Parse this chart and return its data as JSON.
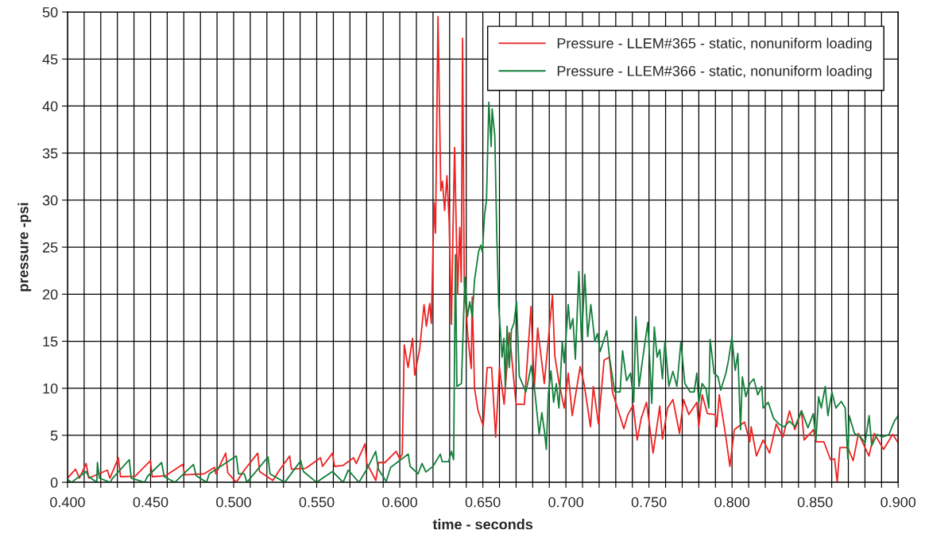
{
  "chart_data": {
    "type": "line",
    "xlabel": "time - seconds",
    "ylabel": "pressure -psi",
    "xlim": [
      0.4,
      0.9
    ],
    "ylim": [
      0,
      50
    ],
    "xticks": [
      {
        "value": 0.4,
        "label": "0.400"
      },
      {
        "value": 0.41,
        "label": null
      },
      {
        "value": 0.42,
        "label": null
      },
      {
        "value": 0.43,
        "label": null
      },
      {
        "value": 0.44,
        "label": null
      },
      {
        "value": 0.45,
        "label": "0.450"
      },
      {
        "value": 0.46,
        "label": null
      },
      {
        "value": 0.47,
        "label": null
      },
      {
        "value": 0.48,
        "label": null
      },
      {
        "value": 0.49,
        "label": null
      },
      {
        "value": 0.5,
        "label": "0.500"
      },
      {
        "value": 0.51,
        "label": null
      },
      {
        "value": 0.52,
        "label": null
      },
      {
        "value": 0.53,
        "label": null
      },
      {
        "value": 0.54,
        "label": null
      },
      {
        "value": 0.55,
        "label": "0.550"
      },
      {
        "value": 0.56,
        "label": null
      },
      {
        "value": 0.57,
        "label": null
      },
      {
        "value": 0.58,
        "label": null
      },
      {
        "value": 0.59,
        "label": null
      },
      {
        "value": 0.6,
        "label": "0.600"
      },
      {
        "value": 0.61,
        "label": null
      },
      {
        "value": 0.62,
        "label": null
      },
      {
        "value": 0.63,
        "label": null
      },
      {
        "value": 0.64,
        "label": null
      },
      {
        "value": 0.65,
        "label": "0.650"
      },
      {
        "value": 0.66,
        "label": null
      },
      {
        "value": 0.67,
        "label": null
      },
      {
        "value": 0.68,
        "label": null
      },
      {
        "value": 0.69,
        "label": null
      },
      {
        "value": 0.7,
        "label": "0.700"
      },
      {
        "value": 0.71,
        "label": null
      },
      {
        "value": 0.72,
        "label": null
      },
      {
        "value": 0.73,
        "label": null
      },
      {
        "value": 0.74,
        "label": null
      },
      {
        "value": 0.75,
        "label": "0.750"
      },
      {
        "value": 0.76,
        "label": null
      },
      {
        "value": 0.77,
        "label": null
      },
      {
        "value": 0.78,
        "label": null
      },
      {
        "value": 0.79,
        "label": null
      },
      {
        "value": 0.8,
        "label": "0.800"
      },
      {
        "value": 0.81,
        "label": null
      },
      {
        "value": 0.82,
        "label": null
      },
      {
        "value": 0.83,
        "label": null
      },
      {
        "value": 0.84,
        "label": null
      },
      {
        "value": 0.85,
        "label": "0.850"
      },
      {
        "value": 0.86,
        "label": null
      },
      {
        "value": 0.87,
        "label": null
      },
      {
        "value": 0.88,
        "label": null
      },
      {
        "value": 0.89,
        "label": null
      },
      {
        "value": 0.9,
        "label": "0.900"
      }
    ],
    "yticks": [
      0,
      5,
      10,
      15,
      20,
      25,
      30,
      35,
      40,
      45,
      50
    ],
    "grid": true,
    "legend": "top right",
    "marker": "none",
    "line_style": "solid",
    "series": [
      {
        "name": "Pressure - LLEM#365 - static, nonuniform loading",
        "color": "#ee2222",
        "x": [
          0.4,
          0.4048,
          0.4072,
          0.4112,
          0.4128,
          0.424,
          0.4255,
          0.4306,
          0.4319,
          0.4407,
          0.4499,
          0.451,
          0.459,
          0.4694,
          0.4706,
          0.4821,
          0.4885,
          0.4893,
          0.4952,
          0.4965,
          0.5016,
          0.5064,
          0.5145,
          0.5156,
          0.5236,
          0.5276,
          0.5337,
          0.5348,
          0.5435,
          0.5523,
          0.5535,
          0.5595,
          0.5607,
          0.5659,
          0.5722,
          0.5738,
          0.5791,
          0.5802,
          0.5856,
          0.5872,
          0.5911,
          0.5978,
          0.6,
          0.6015,
          0.6027,
          0.605,
          0.6077,
          0.609,
          0.612,
          0.6146,
          0.616,
          0.618,
          0.619,
          0.6206,
          0.6215,
          0.623,
          0.6247,
          0.6257,
          0.627,
          0.6284,
          0.6297,
          0.6311,
          0.632,
          0.633,
          0.6348,
          0.6361,
          0.637,
          0.6378,
          0.6388,
          0.641,
          0.643,
          0.6436,
          0.645,
          0.647,
          0.6502,
          0.6526,
          0.6553,
          0.6577,
          0.66,
          0.6628,
          0.666,
          0.67,
          0.675,
          0.679,
          0.681,
          0.683,
          0.687,
          0.6919,
          0.6933,
          0.6957,
          0.699,
          0.7014,
          0.7038,
          0.7086,
          0.711,
          0.7148,
          0.7165,
          0.7196,
          0.723,
          0.7262,
          0.728,
          0.731,
          0.7349,
          0.7373,
          0.7405,
          0.7429,
          0.7453,
          0.7485,
          0.7525,
          0.7565,
          0.7581,
          0.7612,
          0.7644,
          0.7684,
          0.7708,
          0.774,
          0.7788,
          0.78,
          0.782,
          0.7852,
          0.79,
          0.7908,
          0.7923,
          0.7963,
          0.7987,
          0.8014,
          0.8075,
          0.8107,
          0.8115,
          0.8147,
          0.8187,
          0.8226,
          0.8266,
          0.8306,
          0.8346,
          0.8378,
          0.8418,
          0.8434,
          0.849,
          0.8506,
          0.8553,
          0.8593,
          0.8617,
          0.8633,
          0.8649,
          0.8697,
          0.8729,
          0.8761,
          0.8824,
          0.8856,
          0.8912,
          0.8967,
          0.9
        ],
        "values": [
          0.45,
          1.4,
          0.45,
          2.0,
          0.45,
          1.3,
          0.45,
          2.6,
          0.6,
          0.65,
          2.3,
          0.6,
          0.7,
          1.9,
          0.8,
          0.9,
          1.6,
          0.9,
          3.1,
          1.0,
          0.0,
          1.3,
          3.1,
          1.15,
          0.2,
          1.3,
          2.8,
          1.4,
          1.5,
          2.6,
          1.7,
          3.1,
          1.7,
          1.8,
          2.6,
          2.0,
          4.1,
          2.0,
          0.2,
          2.1,
          2.1,
          3.3,
          2.5,
          3.0,
          14.6,
          12.2,
          15.3,
          11.4,
          14.2,
          18.9,
          16.6,
          19.0,
          16.9,
          29.7,
          26.5,
          49.5,
          31.0,
          32.0,
          28.9,
          32.6,
          27.8,
          16.8,
          26.5,
          35.6,
          20.0,
          27.1,
          21.3,
          47.2,
          21.3,
          15.5,
          12.1,
          19.7,
          10.0,
          7.7,
          6.0,
          12.2,
          12.2,
          4.8,
          12.2,
          8.3,
          15.9,
          8.3,
          8.3,
          18.7,
          10.0,
          16.4,
          10.5,
          19.9,
          13.5,
          10.7,
          7.9,
          11.6,
          7.1,
          12.3,
          10.4,
          5.9,
          10.2,
          6.2,
          13.0,
          13.3,
          9.6,
          7.9,
          5.7,
          7.2,
          8.2,
          4.5,
          6.8,
          8.5,
          3.1,
          8.1,
          4.6,
          7.9,
          8.8,
          5.2,
          8.8,
          7.2,
          8.5,
          5.9,
          9.3,
          7.3,
          7.2,
          5.9,
          9.3,
          4.8,
          1.7,
          5.6,
          6.4,
          4.3,
          5.9,
          2.8,
          4.5,
          3.1,
          6.2,
          4.8,
          7.6,
          5.6,
          7.6,
          4.5,
          5.6,
          4.3,
          4.3,
          2.4,
          2.5,
          0.0,
          3.7,
          3.7,
          2.3,
          5.2,
          2.8,
          5.2,
          3.5,
          5.1,
          4.2
        ]
      },
      {
        "name": "Pressure - LLEM#366 - static, nonuniform loading",
        "color": "#137f3a",
        "x": [
          0.4,
          0.4024,
          0.4112,
          0.4128,
          0.4176,
          0.418,
          0.4192,
          0.4256,
          0.4272,
          0.4372,
          0.4383,
          0.4464,
          0.448,
          0.4566,
          0.4582,
          0.4646,
          0.4758,
          0.4774,
          0.4837,
          0.4853,
          0.5016,
          0.5029,
          0.5064,
          0.508,
          0.5207,
          0.5219,
          0.5308,
          0.5404,
          0.542,
          0.5499,
          0.5595,
          0.5659,
          0.569,
          0.5754,
          0.5802,
          0.5855,
          0.5871,
          0.5918,
          0.5945,
          0.6051,
          0.6062,
          0.611,
          0.6134,
          0.6157,
          0.62,
          0.6244,
          0.6255,
          0.6294,
          0.6311,
          0.6324,
          0.6335,
          0.6344,
          0.6371,
          0.6392,
          0.6407,
          0.6421,
          0.6436,
          0.645,
          0.6474,
          0.6487,
          0.6497,
          0.651,
          0.6522,
          0.6536,
          0.655,
          0.6556,
          0.6572,
          0.6584,
          0.6596,
          0.6616,
          0.6627,
          0.6635,
          0.6646,
          0.6659,
          0.6672,
          0.6687,
          0.6703,
          0.6719,
          0.6759,
          0.6791,
          0.6815,
          0.6839,
          0.6855,
          0.6871,
          0.6882,
          0.6894,
          0.691,
          0.6926,
          0.6942,
          0.6958,
          0.6978,
          0.699,
          0.7014,
          0.7026,
          0.7042,
          0.7057,
          0.7078,
          0.7094,
          0.7114,
          0.7131,
          0.715,
          0.7174,
          0.719,
          0.7206,
          0.7246,
          0.7262,
          0.7294,
          0.7326,
          0.7341,
          0.7365,
          0.7389,
          0.7408,
          0.7421,
          0.744,
          0.7461,
          0.7493,
          0.7517,
          0.7532,
          0.7549,
          0.7565,
          0.7581,
          0.7596,
          0.762,
          0.7644,
          0.7668,
          0.7692,
          0.7716,
          0.7748,
          0.7772,
          0.7788,
          0.78,
          0.782,
          0.7844,
          0.786,
          0.7868,
          0.7892,
          0.7916,
          0.7932,
          0.7963,
          0.7979,
          0.7999,
          0.8019,
          0.8035,
          0.8051,
          0.8062,
          0.8083,
          0.8107,
          0.8131,
          0.8155,
          0.8179,
          0.8187,
          0.8218,
          0.825,
          0.8282,
          0.8314,
          0.8346,
          0.8378,
          0.8418,
          0.8457,
          0.8489,
          0.8505,
          0.8521,
          0.8537,
          0.8561,
          0.8577,
          0.8601,
          0.8625,
          0.8657,
          0.8681,
          0.8697,
          0.8705,
          0.8737,
          0.8769,
          0.8801,
          0.8825,
          0.8841,
          0.8873,
          0.8905,
          0.8945,
          0.8977,
          0.9
        ],
        "values": [
          0.3,
          0.0,
          1.15,
          0.6,
          0.0,
          2.1,
          0.45,
          0.0,
          0.45,
          2.4,
          0.45,
          0.0,
          0.6,
          2.1,
          0.6,
          0.0,
          1.9,
          0.7,
          0.0,
          0.9,
          2.8,
          0.9,
          0.9,
          0.0,
          2.7,
          0.9,
          0.0,
          2.3,
          1.15,
          0.0,
          1.15,
          0.0,
          1.3,
          0.0,
          1.4,
          3.3,
          1.4,
          0.1,
          1.6,
          3.0,
          1.7,
          0.9,
          2.0,
          1.1,
          1.7,
          3.0,
          2.2,
          2.2,
          3.3,
          2.4,
          24.2,
          10.2,
          10.5,
          21.8,
          17.6,
          19.2,
          17.6,
          21.5,
          24.5,
          25.2,
          24.5,
          28.4,
          30.0,
          40.4,
          35.7,
          39.7,
          36.8,
          26.2,
          18.6,
          13.3,
          15.3,
          10.2,
          16.6,
          12.2,
          16.2,
          16.9,
          19.2,
          11.3,
          9.6,
          12.4,
          9.3,
          5.1,
          7.4,
          5.4,
          3.5,
          9.3,
          11.85,
          8.5,
          10.5,
          7.9,
          14.95,
          12.7,
          18.9,
          16.3,
          17.4,
          13.1,
          22.4,
          15.0,
          22.1,
          15.5,
          18.9,
          15.0,
          15.8,
          13.9,
          16.1,
          13.3,
          9.6,
          9.6,
          14.0,
          10.8,
          11.6,
          8.5,
          17.6,
          10.2,
          13.0,
          17.0,
          8.4,
          16.5,
          13.3,
          14.1,
          11.0,
          15.0,
          10.2,
          11.8,
          10.2,
          14.9,
          10.5,
          9.6,
          9.6,
          11.6,
          8.5,
          10.5,
          9.9,
          7.9,
          15.2,
          11.6,
          11.2,
          9.8,
          11.6,
          13.0,
          15.4,
          11.9,
          13.7,
          5.6,
          11.2,
          9.1,
          10.5,
          11.0,
          9.3,
          10.2,
          7.9,
          8.5,
          6.8,
          6.2,
          5.9,
          6.5,
          5.9,
          7.6,
          5.8,
          7.3,
          4.5,
          9.1,
          7.9,
          10.2,
          7.1,
          9.6,
          7.9,
          8.6,
          7.9,
          2.5,
          7.1,
          5.2,
          4.9,
          4.2,
          7.1,
          3.9,
          5.1,
          4.8,
          5.1,
          6.5,
          7.1
        ]
      }
    ]
  }
}
